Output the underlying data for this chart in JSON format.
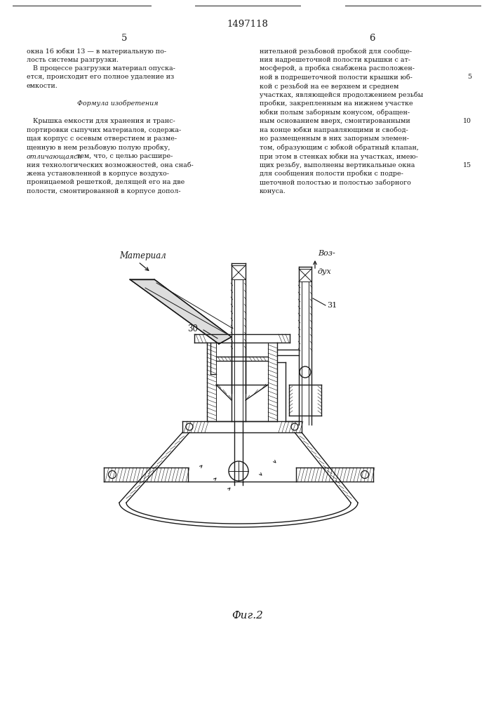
{
  "patent_number": "1497118",
  "page_left": "5",
  "page_right": "6",
  "figure_caption": "Фиг.2",
  "text_left_col": [
    "окна 16 юбки 13 — в материальную по-",
    "лость системы разгрузки.",
    "   В процессе разгрузки материал опуска-",
    "ется, происходит его полное удаление из",
    "емкости.",
    "",
    "   Формула изобретения",
    "",
    "   Крышка емкости для хранения и транс-",
    "портировки сыпучих материалов, содержа-",
    "щая корпус с осевым отверстием и разме-",
    "щенную в нем резьбовую полую пробку,",
    "отличающаяся тем, что, с целью расшире-",
    "ния технологических возможностей, она снаб-",
    "жена установленной в корпусе воздухо-",
    "проницаемой решеткой, делящей его на две",
    "полости, смонтированной в корпусе допол-"
  ],
  "text_right_col": [
    "нительной резьбовой пробкой для сообще-",
    "ния надрешеточной полости крышки с ат-",
    "мосферой, а пробка снабжена расположен-",
    "ной в подрешеточной полости крышки юб-",
    "кой с резьбой на ее верхнем и среднем",
    "участках, являющейся продолжением резьбы",
    "пробки, закрепленным на нижнем участке",
    "юбки полым заборным конусом, обращен-",
    "ным основанием вверх, смонтированными",
    "на конце юбки направляющими и свобод-",
    "но размещенным в них запорным элемен-",
    "том, образующим с юбкой обратный клапан,",
    "при этом в стенках юбки на участках, имею-",
    "щих резьбу, выполнены вертикальные окна",
    "для сообщения полости пробки с подре-",
    "шеточной полостью и полостью заборного",
    "конуса."
  ],
  "line_numbers": [
    [
      3,
      "5"
    ],
    [
      8,
      "10"
    ],
    [
      13,
      "15"
    ]
  ],
  "label_material": "Материал",
  "label_voz": "Воз-",
  "label_duh": "дух",
  "label_30": "30",
  "label_31": "31",
  "bg_color": "#ffffff",
  "text_color": "#1a1a1a",
  "line_color": "#1a1a1a"
}
